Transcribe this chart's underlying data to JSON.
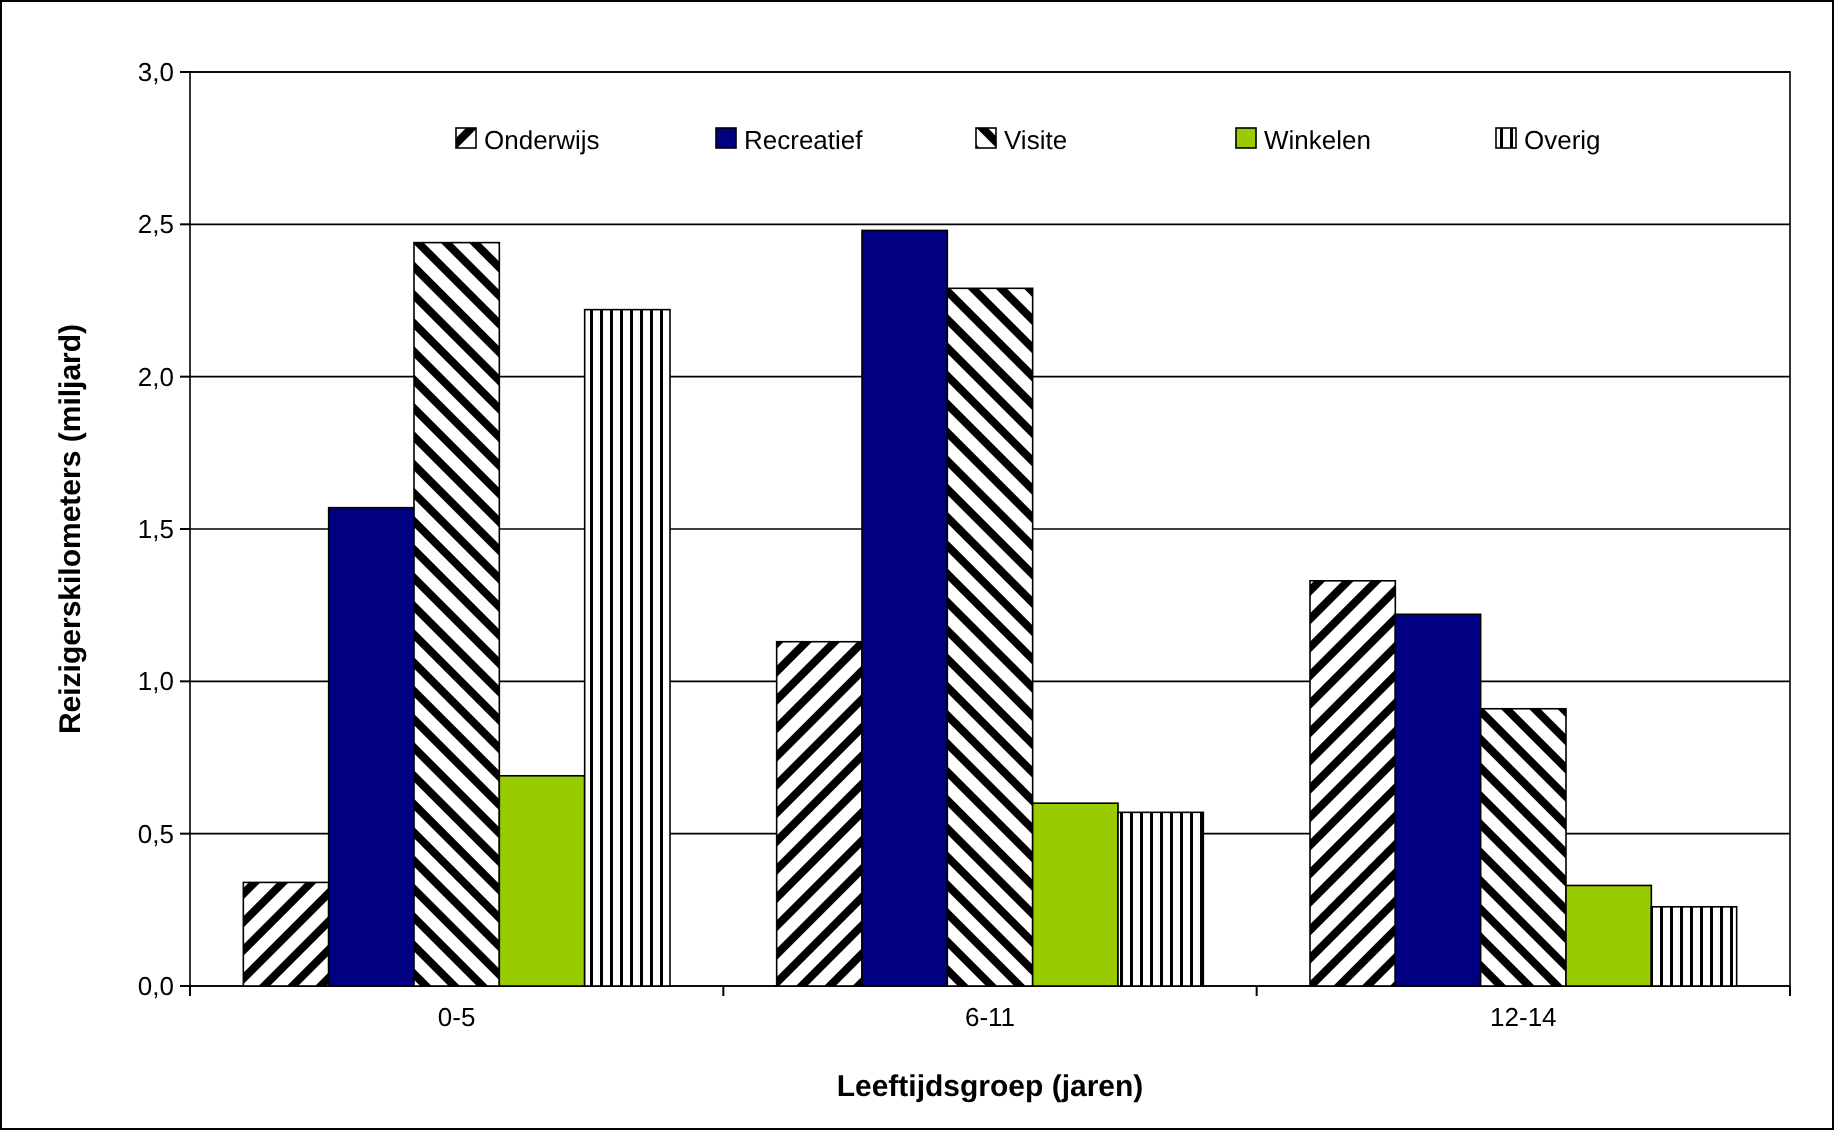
{
  "chart_data": {
    "type": "bar",
    "xlabel": "Leeftijdsgroep (jaren)",
    "ylabel": "Reizigerskilometers (miljard)",
    "categories": [
      "0-5",
      "6-11",
      "12-14"
    ],
    "series": [
      {
        "name": "Onderwijs",
        "color": "#000000",
        "values": [
          0.34,
          1.13,
          1.33
        ]
      },
      {
        "name": "Recreatief",
        "color": "#000080",
        "values": [
          1.57,
          2.48,
          1.22
        ]
      },
      {
        "name": "Visite",
        "color": "#000000",
        "values": [
          2.44,
          2.29,
          0.91
        ]
      },
      {
        "name": "Winkelen",
        "color": "#99cc00",
        "values": [
          0.69,
          0.6,
          0.33
        ]
      },
      {
        "name": "Overig",
        "color": "#000000",
        "values": [
          2.22,
          0.57,
          0.26
        ]
      }
    ],
    "ylim": [
      0,
      3
    ],
    "yticks": [
      {
        "value": 0,
        "label": "0,0"
      },
      {
        "value": 0.5,
        "label": "0,5"
      },
      {
        "value": 1,
        "label": "1,0"
      },
      {
        "value": 1.5,
        "label": "1,5"
      },
      {
        "value": 2,
        "label": "2,0"
      },
      {
        "value": 2.5,
        "label": "2,5"
      },
      {
        "value": 3,
        "label": "3,0"
      }
    ],
    "grid": "y",
    "legend": "top"
  }
}
